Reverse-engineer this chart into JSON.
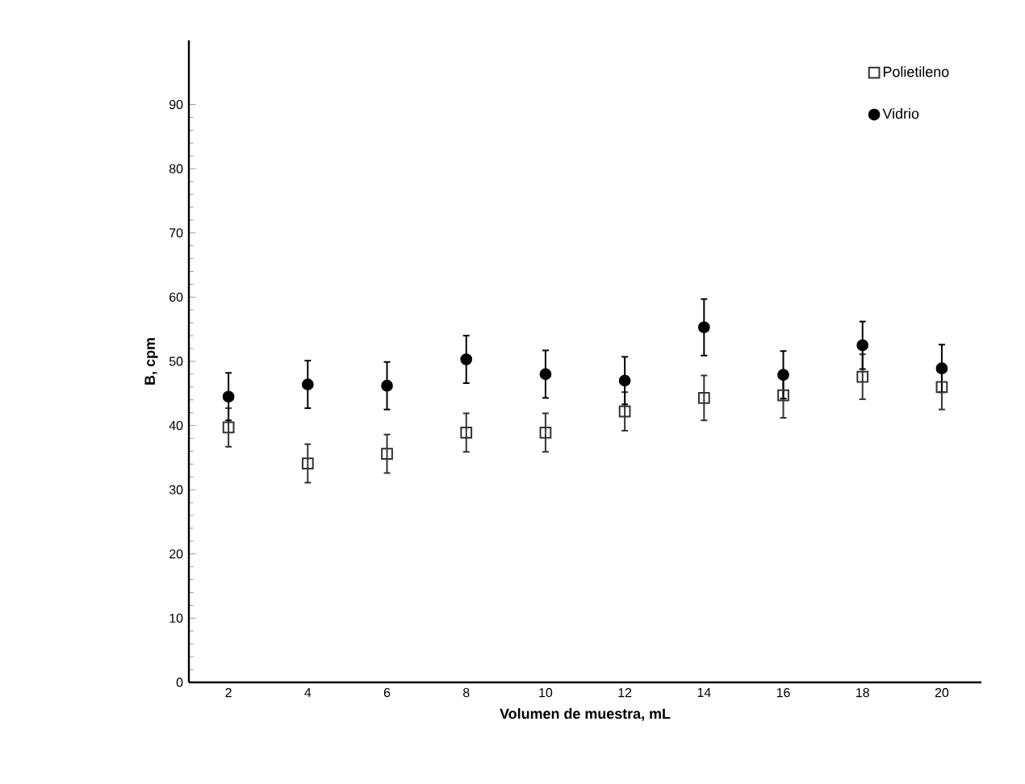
{
  "chart_data": {
    "type": "scatter",
    "xlabel": "Volumen de muestra, mL",
    "ylabel": "B, cpm",
    "categories": [
      "2",
      "4",
      "6",
      "8",
      "10",
      "12",
      "14",
      "16",
      "18",
      "20"
    ],
    "series": [
      {
        "name": "Polietileno",
        "color": "#333333",
        "marker": "square",
        "values": [
          39.7,
          34.1,
          35.6,
          38.9,
          38.9,
          42.2,
          44.3,
          44.7,
          47.6,
          46.0
        ],
        "errors": [
          3,
          3,
          3,
          3,
          3,
          3,
          3.5,
          3.5,
          3.5,
          3.5
        ]
      },
      {
        "name": "Vidrio",
        "color": "#000000",
        "marker": "circle",
        "values": [
          44.5,
          46.4,
          46.2,
          50.3,
          48.0,
          47.0,
          55.3,
          47.9,
          52.5,
          48.9
        ],
        "errors": [
          3.7,
          3.7,
          3.7,
          3.7,
          3.7,
          3.7,
          4.4,
          3.7,
          3.7,
          3.7
        ]
      }
    ],
    "ylim": [
      0,
      100
    ],
    "yticks": [
      0,
      10,
      20,
      30,
      40,
      50,
      60,
      70,
      80,
      90
    ],
    "grid": false,
    "legend": "top right"
  }
}
